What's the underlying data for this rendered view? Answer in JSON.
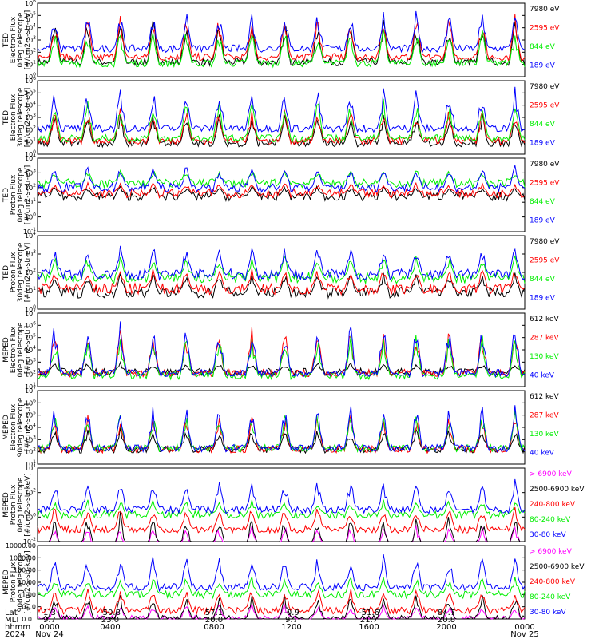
{
  "colors": {
    "black": "#000000",
    "red": "#ff0000",
    "green": "#00ee00",
    "blue": "#0000ff",
    "magenta": "#ff00ff",
    "frame": "#000000"
  },
  "footer": {
    "lat_label": "Lat",
    "mlt_label": "MLT",
    "hhmm_label": "hhmm",
    "year_label": "2024",
    "ticks": [
      {
        "lat": "1.3",
        "mlt": "9.7",
        "hhmm": "0000",
        "date": "Nov 24"
      },
      {
        "lat": "-50.8",
        "mlt": "23.0",
        "hhmm": "0400",
        "date": ""
      },
      {
        "lat": "57.1",
        "mlt": "20.0",
        "hhmm": "0800",
        "date": ""
      },
      {
        "lat": "-0.9",
        "mlt": "9.7",
        "hhmm": "1200",
        "date": ""
      },
      {
        "lat": "-51.6",
        "mlt": "21.7",
        "hhmm": "1600",
        "date": ""
      },
      {
        "lat": "84.7",
        "mlt": "20.8",
        "hhmm": "2000",
        "date": ""
      },
      {
        "lat": "",
        "mlt": "",
        "hhmm": "0000",
        "date": "Nov 25"
      }
    ]
  },
  "chart_data": [
    {
      "type": "line",
      "title": "",
      "ylabel": [
        "TED",
        "Electron Flux",
        "0deg telescope",
        "[#/cm2-s-str-eV]"
      ],
      "yscale": "log",
      "tick_labels": [
        "10^0",
        "10^1",
        "10^2",
        "10^3",
        "10^4",
        "10^5",
        "10^6"
      ],
      "x": [
        "0000",
        "0400",
        "0800",
        "1200",
        "1600",
        "2000",
        "0000"
      ],
      "series": [
        {
          "name": "7980 eV",
          "color": "black",
          "level": 1.2,
          "spikes": 5.0
        },
        {
          "name": "2595 eV",
          "color": "red",
          "level": 1.6,
          "spikes": 5.2
        },
        {
          "name": "844 eV",
          "color": "green",
          "level": 1.1,
          "spikes": 4.0
        },
        {
          "name": "189 eV",
          "color": "blue",
          "level": 2.3,
          "spikes": 5.6
        }
      ]
    },
    {
      "type": "line",
      "title": "",
      "ylabel": [
        "TED",
        "Electron Flux",
        "30deg telescope",
        "[#/cm2-s-str-eV]"
      ],
      "yscale": "log",
      "tick_labels": [
        "10^0",
        "10^1",
        "10^2",
        "10^3",
        "10^4",
        "10^5",
        "10^6"
      ],
      "x": [
        "0000",
        "0400",
        "0800",
        "1200",
        "1600",
        "2000",
        "0000"
      ],
      "series": [
        {
          "name": "7980 eV",
          "color": "black",
          "level": 0.9,
          "spikes": 3.5
        },
        {
          "name": "2595 eV",
          "color": "red",
          "level": 1.1,
          "spikes": 4.0
        },
        {
          "name": "844 eV",
          "color": "green",
          "level": 1.3,
          "spikes": 4.6
        },
        {
          "name": "189 eV",
          "color": "blue",
          "level": 2.1,
          "spikes": 5.7
        }
      ]
    },
    {
      "type": "line",
      "title": "",
      "ylabel": [
        "TED",
        "Proton Flux",
        "0deg telescope",
        "[#/cm2-s-str-eV]"
      ],
      "yscale": "log",
      "tick_labels": [
        "10^-1",
        "10^0",
        "10^1",
        "10^2",
        "10^3",
        "10^4"
      ],
      "x": [
        "0000",
        "0400",
        "0800",
        "1200",
        "1600",
        "2000",
        "0000"
      ],
      "series": [
        {
          "name": "7980 eV",
          "color": "black",
          "level": 1.4,
          "spikes": 2.2
        },
        {
          "name": "2595 eV",
          "color": "red",
          "level": 1.6,
          "spikes": 2.4
        },
        {
          "name": "844 eV",
          "color": "green",
          "level": 2.3,
          "spikes": 3.3
        },
        {
          "name": "189 eV",
          "color": "blue",
          "level": 2.0,
          "spikes": 3.6
        }
      ]
    },
    {
      "type": "line",
      "title": "",
      "ylabel": [
        "TED",
        "Proton Flux",
        "30deg telescope",
        "[#/cm2-s-str-eV]"
      ],
      "yscale": "log",
      "tick_labels": [
        "10^0",
        "10^1",
        "10^2",
        "10^3",
        "10^4"
      ],
      "x": [
        "0000",
        "0400",
        "0800",
        "1200",
        "1600",
        "2000",
        "0000"
      ],
      "series": [
        {
          "name": "7980 eV",
          "color": "black",
          "level": 0.9,
          "spikes": 2.0
        },
        {
          "name": "2595 eV",
          "color": "red",
          "level": 1.1,
          "spikes": 2.3
        },
        {
          "name": "844 eV",
          "color": "green",
          "level": 1.7,
          "spikes": 3.0
        },
        {
          "name": "189 eV",
          "color": "blue",
          "level": 1.9,
          "spikes": 3.6
        }
      ]
    },
    {
      "type": "line",
      "title": "",
      "ylabel": [
        "MEPED",
        "Electron Flux",
        "0deg telescope",
        "[#/cm2-s-str]"
      ],
      "yscale": "log",
      "tick_labels": [
        "10^1",
        "10^2",
        "10^3",
        "10^4",
        "10^5",
        "10^6",
        "10^7"
      ],
      "x": [
        "0000",
        "0400",
        "0800",
        "1200",
        "1600",
        "2000",
        "0000"
      ],
      "series": [
        {
          "name": "612 keV",
          "color": "black",
          "level": 2.2,
          "spikes": 3.0
        },
        {
          "name": "287 keV",
          "color": "red",
          "level": 2.1,
          "spikes": 5.9
        },
        {
          "name": "130 keV",
          "color": "green",
          "level": 1.9,
          "spikes": 5.5
        },
        {
          "name": "40 keV",
          "color": "blue",
          "level": 2.1,
          "spikes": 6.5
        }
      ]
    },
    {
      "type": "line",
      "title": "",
      "ylabel": [
        "MEPED",
        "Electron Flux",
        "90deg telescope",
        "[#/cm2-s-str]"
      ],
      "yscale": "log",
      "tick_labels": [
        "10^1",
        "10^2",
        "10^3",
        "10^4",
        "10^5",
        "10^6",
        "10^7"
      ],
      "x": [
        "0000",
        "0400",
        "0800",
        "1200",
        "1600",
        "2000",
        "0000"
      ],
      "series": [
        {
          "name": "612 keV",
          "color": "black",
          "level": 2.2,
          "spikes": 4.0
        },
        {
          "name": "287 keV",
          "color": "red",
          "level": 2.2,
          "spikes": 5.3
        },
        {
          "name": "130 keV",
          "color": "green",
          "level": 2.3,
          "spikes": 5.5
        },
        {
          "name": "40 keV",
          "color": "blue",
          "level": 2.3,
          "spikes": 6.0
        }
      ]
    },
    {
      "type": "line",
      "title": "",
      "ylabel": [
        "MEPED",
        "Proton Flux",
        "0deg telescope",
        "[#/cm2-s-str-keV]"
      ],
      "yscale": "log",
      "tick_labels": [
        "10^-2",
        "10^0",
        "10^2",
        "10^4"
      ],
      "x": [
        "0000",
        "0400",
        "0800",
        "1200",
        "1600",
        "2000",
        "0000"
      ],
      "series": [
        {
          "name": "> 6900 keV",
          "color": "magenta",
          "level": -2.5,
          "spikes": -0.5
        },
        {
          "name": "2500-6900 keV",
          "color": "black",
          "level": -2.5,
          "spikes": 0.5
        },
        {
          "name": "240-800 keV",
          "color": "red",
          "level": -1.0,
          "spikes": 1.0
        },
        {
          "name": "80-240 keV",
          "color": "green",
          "level": 0.2,
          "spikes": 1.5
        },
        {
          "name": "30-80 keV",
          "color": "blue",
          "level": 0.6,
          "spikes": 3.2
        }
      ]
    },
    {
      "type": "line",
      "title": "",
      "ylabel": [
        "MEPED",
        "Proton Flux",
        "90deg telescope",
        "[#/cm2-s-str-keV]"
      ],
      "yscale": "log",
      "tick_labels": [
        "0.01",
        "0.10",
        "1.00",
        "10.00",
        "100.00",
        "1000.00",
        "10000.00"
      ],
      "x": [
        "0000",
        "0400",
        "0800",
        "1200",
        "1600",
        "2000",
        "0000"
      ],
      "series": [
        {
          "name": "> 6900 keV",
          "color": "magenta",
          "level": -2.0,
          "spikes": -0.7
        },
        {
          "name": "2500-6900 keV",
          "color": "black",
          "level": -2.0,
          "spikes": 0.2
        },
        {
          "name": "240-800 keV",
          "color": "red",
          "level": -1.3,
          "spikes": 0.7
        },
        {
          "name": "80-240 keV",
          "color": "green",
          "level": 0.0,
          "spikes": 1.5
        },
        {
          "name": "30-80 keV",
          "color": "blue",
          "level": 0.6,
          "spikes": 3.3
        }
      ]
    }
  ]
}
